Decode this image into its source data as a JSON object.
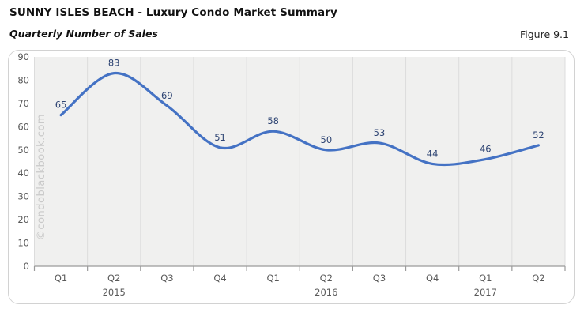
{
  "header": {
    "title": "SUNNY ISLES BEACH - Luxury Condo Market Summary",
    "subtitle": "Quarterly Number of Sales",
    "figure_label": "Figure 9.1"
  },
  "watermark": "©condoblackbook.com",
  "chart_data": {
    "type": "line",
    "title": "Quarterly Number of Sales",
    "categories": [
      "Q1",
      "Q2",
      "Q3",
      "Q4",
      "Q1",
      "Q2",
      "Q3",
      "Q4",
      "Q1",
      "Q2"
    ],
    "year_groups": [
      {
        "label": "2015",
        "tick_index": 1
      },
      {
        "label": "2016",
        "tick_index": 5
      },
      {
        "label": "2017",
        "tick_index": 8
      }
    ],
    "series": [
      {
        "name": "Quarterly Number of Sales",
        "values": [
          65,
          83,
          69,
          51,
          58,
          50,
          53,
          44,
          46,
          52
        ]
      }
    ],
    "ylim": [
      0,
      90
    ],
    "ytick_step": 10,
    "grid": "vertical-only",
    "smooth": true,
    "data_labels": true,
    "legend": "none",
    "colors": {
      "line": "#4472c4",
      "data_label": "#2e4473",
      "axis_text": "#595959",
      "plot_bg": "#f0f0ef",
      "gridline": "#dcdcdc",
      "axis_line": "#9b9b9b",
      "watermark": "#c9c9c9"
    }
  }
}
